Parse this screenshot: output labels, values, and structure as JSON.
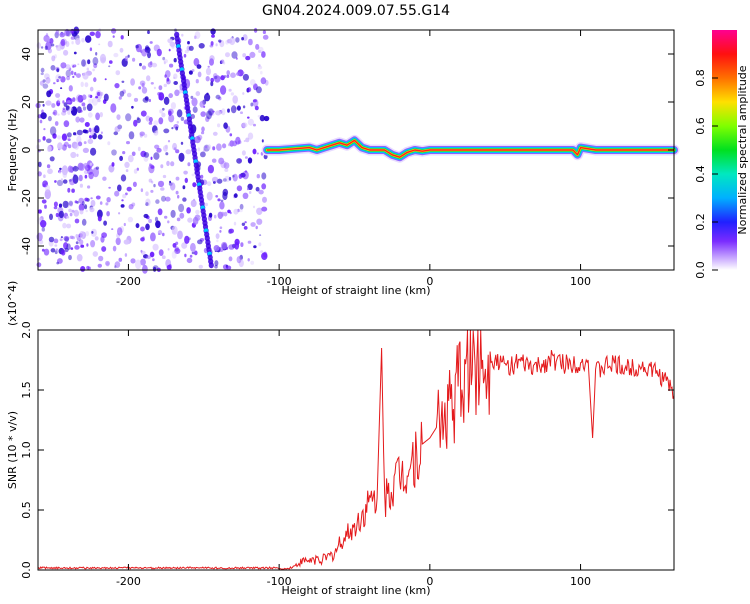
{
  "title": "GN04.2024.009.07.55.G14",
  "colors": {
    "snr_line": "#e41a1c",
    "ridge_dark": "#2200cc",
    "ridge_light": "#8050ff",
    "background": "#ffffff"
  },
  "chart_data": [
    {
      "type": "heatmap",
      "xlabel": "Height of straight line (km)",
      "ylabel": "Frequency (Hz)",
      "xlim": [
        -260,
        162
      ],
      "ylim": [
        -50,
        50
      ],
      "x_ticks": [
        -200,
        -100,
        0,
        100
      ],
      "y_ticks": [
        -40,
        -20,
        0,
        20,
        40
      ],
      "colorbar": {
        "label": "Normalized spectral amplitude",
        "range": [
          0,
          1
        ],
        "ticks": [
          0.0,
          0.2,
          0.4,
          0.6,
          0.8
        ],
        "colormap": "rainbow"
      },
      "noise_region_x": [
        -260,
        -108
      ],
      "ridge": {
        "x": [
          -108,
          -100,
          -90,
          -80,
          -75,
          -70,
          -65,
          -60,
          -55,
          -50,
          -45,
          -40,
          -30,
          -25,
          -20,
          -15,
          -10,
          -5,
          0,
          20,
          40,
          60,
          80,
          95,
          98,
          100,
          110,
          130,
          150,
          162
        ],
        "y": [
          0,
          0,
          0.5,
          1,
          0,
          1,
          2,
          3,
          2,
          4,
          1,
          0,
          0,
          -2,
          -3,
          -1,
          0,
          -0.5,
          0,
          0,
          0,
          0,
          0,
          0,
          -2,
          1,
          0,
          0,
          0,
          0
        ]
      },
      "oblique_trace": {
        "x": [
          -168,
          -145
        ],
        "y": [
          48,
          -48
        ]
      }
    },
    {
      "type": "line",
      "xlabel": "Height of straight line (km)",
      "ylabel": "SNR (10 * v/v)",
      "y_multiplier": "(x10^4)",
      "xlim": [
        -260,
        162
      ],
      "ylim": [
        0,
        20000
      ],
      "x_ticks": [
        -200,
        -100,
        0,
        100
      ],
      "y_tick_labels": [
        "0.0",
        "0.5",
        "1.0",
        "1.5",
        "2.0"
      ],
      "y_tick_values": [
        0,
        5000,
        10000,
        15000,
        20000
      ],
      "series": [
        {
          "x": [
            -260,
            -200,
            -150,
            -100,
            -95,
            -90,
            -85,
            -80,
            -75,
            -70,
            -65,
            -60,
            -55,
            -50,
            -45,
            -40,
            -35,
            -32,
            -30,
            -28,
            -25,
            -20,
            -15,
            -10,
            -5,
            0,
            5,
            10,
            15,
            20,
            25,
            30,
            35,
            40,
            45,
            50,
            60,
            70,
            80,
            90,
            100,
            105,
            108,
            110,
            120,
            130,
            140,
            150,
            155,
            160,
            162
          ],
          "y": [
            0,
            0,
            100,
            100,
            100,
            300,
            700,
            800,
            900,
            900,
            1200,
            2000,
            3000,
            3500,
            4500,
            5500,
            6000,
            18500,
            5500,
            6500,
            7000,
            8000,
            8500,
            9500,
            10500,
            11000,
            12000,
            13000,
            14000,
            15500,
            17000,
            17500,
            18000,
            17800,
            17500,
            17000,
            17200,
            16800,
            17500,
            17200,
            17300,
            17500,
            11000,
            16500,
            17200,
            16800,
            17000,
            16500,
            16000,
            15200,
            14500
          ]
        }
      ]
    }
  ]
}
